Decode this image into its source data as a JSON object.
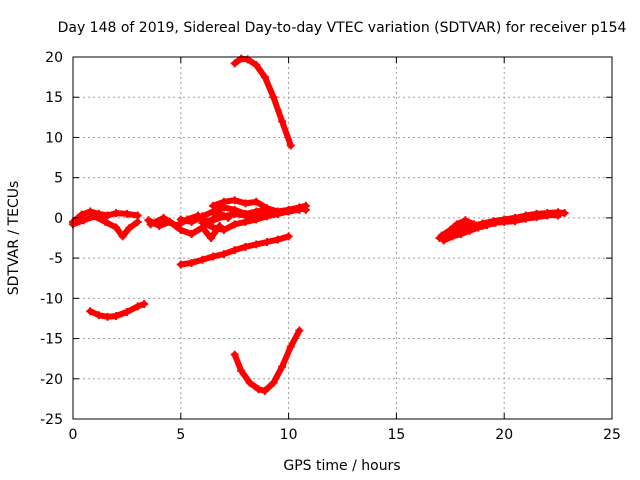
{
  "chart_data": {
    "type": "scatter",
    "title": "Day 148 of 2019, Sidereal Day-to-day VTEC variation (SDTVAR) for receiver p154",
    "xlabel": "GPS time / hours",
    "ylabel": "SDTVAR / TECUs",
    "xlim": [
      0,
      25
    ],
    "ylim": [
      -25,
      20
    ],
    "xticks": [
      0,
      5,
      10,
      15,
      20,
      25
    ],
    "yticks": [
      -25,
      -20,
      -15,
      -10,
      -5,
      0,
      5,
      10,
      15,
      20
    ],
    "grid": true,
    "color": "#ff0000",
    "series": [
      {
        "name": "arc-top-right",
        "x": [
          7.5,
          7.8,
          8.1,
          8.5,
          8.9,
          9.3,
          9.7,
          10.1
        ],
        "y": [
          19.2,
          19.8,
          19.7,
          19.0,
          17.5,
          15.0,
          12.0,
          9.0
        ]
      },
      {
        "name": "arc-bottom-u",
        "x": [
          7.5,
          7.8,
          8.2,
          8.6,
          8.9,
          9.3,
          9.7,
          10.1,
          10.5
        ],
        "y": [
          -17.0,
          -19.0,
          -20.5,
          -21.3,
          -21.5,
          -20.5,
          -18.5,
          -16.0,
          -14.0
        ]
      },
      {
        "name": "arc-left-low",
        "x": [
          0.8,
          1.2,
          1.6,
          2.0,
          2.5,
          3.0,
          3.3
        ],
        "y": [
          -11.6,
          -12.1,
          -12.3,
          -12.2,
          -11.7,
          -11.0,
          -10.7
        ]
      },
      {
        "name": "band-left",
        "x": [
          0.0,
          0.4,
          0.8,
          1.2,
          1.6,
          2.0,
          2.5,
          3.0
        ],
        "y": [
          -0.5,
          0.4,
          0.8,
          0.5,
          0.3,
          0.6,
          0.5,
          0.3
        ]
      },
      {
        "name": "band-left-2",
        "x": [
          0.0,
          0.5,
          1.0,
          1.5,
          2.0,
          2.3,
          2.6,
          3.0
        ],
        "y": [
          -0.8,
          -0.3,
          0.2,
          -0.5,
          -1.2,
          -2.3,
          -1.3,
          -0.5
        ]
      },
      {
        "name": "band-mid-1",
        "x": [
          3.5,
          4.0,
          4.5,
          5.0,
          5.5,
          6.0,
          6.4,
          6.8
        ],
        "y": [
          -0.3,
          -1.0,
          -0.5,
          -1.5,
          -2.0,
          -1.2,
          -2.5,
          -1.0
        ]
      },
      {
        "name": "band-mid-2",
        "x": [
          3.6,
          4.2,
          4.8,
          5.3,
          5.8,
          6.3,
          6.8,
          7.2
        ],
        "y": [
          -0.8,
          0.0,
          -1.0,
          -0.2,
          0.3,
          -0.5,
          0.5,
          0.0
        ]
      },
      {
        "name": "band-mid-3",
        "x": [
          5.0,
          5.5,
          6.0,
          6.5,
          7.0,
          7.5,
          8.0,
          8.5,
          9.0,
          9.5,
          10.0,
          10.5,
          10.8
        ],
        "y": [
          -0.2,
          -0.5,
          0.2,
          0.8,
          1.3,
          1.0,
          0.5,
          0.8,
          1.0,
          0.5,
          0.9,
          1.2,
          1.0
        ]
      },
      {
        "name": "band-mid-4",
        "x": [
          6.5,
          7.0,
          7.5,
          8.0,
          8.5,
          9.0,
          9.5,
          10.0,
          10.5,
          10.8
        ],
        "y": [
          1.5,
          2.0,
          2.2,
          1.8,
          2.0,
          1.2,
          0.8,
          1.0,
          1.3,
          1.5
        ]
      },
      {
        "name": "band-mid-5",
        "x": [
          6.0,
          6.5,
          7.0,
          7.5,
          8.0,
          8.5,
          9.0,
          9.5,
          10.0,
          10.5
        ],
        "y": [
          -0.6,
          -1.2,
          -1.5,
          -0.8,
          -0.5,
          -0.2,
          0.2,
          0.5,
          0.8,
          1.0
        ]
      },
      {
        "name": "band-mid-6",
        "x": [
          6.5,
          7.0,
          7.5,
          8.0,
          8.5,
          9.0,
          9.5,
          10.0
        ],
        "y": [
          -0.3,
          0.2,
          0.5,
          0.3,
          0.0,
          0.4,
          0.6,
          0.9
        ]
      },
      {
        "name": "arc-lower-mid",
        "x": [
          5.0,
          5.5,
          6.0,
          6.5,
          7.0,
          7.5,
          8.0,
          8.5,
          9.0,
          9.5,
          10.0
        ],
        "y": [
          -5.8,
          -5.6,
          -5.2,
          -4.8,
          -4.5,
          -4.0,
          -3.6,
          -3.3,
          -3.0,
          -2.7,
          -2.3
        ]
      },
      {
        "name": "band-right-1",
        "x": [
          17.0,
          17.5,
          18.0,
          18.5,
          19.0,
          19.5,
          20.0,
          20.5,
          21.0,
          21.5,
          22.0,
          22.5,
          22.8
        ],
        "y": [
          -2.5,
          -1.8,
          -1.2,
          -1.0,
          -0.7,
          -0.4,
          -0.2,
          0.0,
          0.3,
          0.5,
          0.6,
          0.7,
          0.6
        ]
      },
      {
        "name": "band-right-2",
        "x": [
          17.1,
          17.5,
          17.8,
          18.2,
          18.6,
          19.0,
          19.5,
          20.0,
          20.5,
          21.0,
          21.5,
          22.0,
          22.5
        ],
        "y": [
          -2.2,
          -1.5,
          -0.8,
          -0.3,
          -0.8,
          -1.0,
          -0.6,
          -0.3,
          -0.2,
          0.1,
          0.2,
          0.4,
          0.3
        ]
      },
      {
        "name": "band-right-3",
        "x": [
          17.2,
          17.6,
          18.0,
          18.4,
          18.8,
          19.2,
          19.6,
          20.0,
          20.5,
          21.0,
          21.5,
          22.0,
          22.6
        ],
        "y": [
          -2.8,
          -2.3,
          -2.0,
          -1.6,
          -1.2,
          -0.9,
          -0.6,
          -0.5,
          -0.4,
          -0.1,
          0.1,
          0.3,
          0.5
        ]
      }
    ]
  }
}
